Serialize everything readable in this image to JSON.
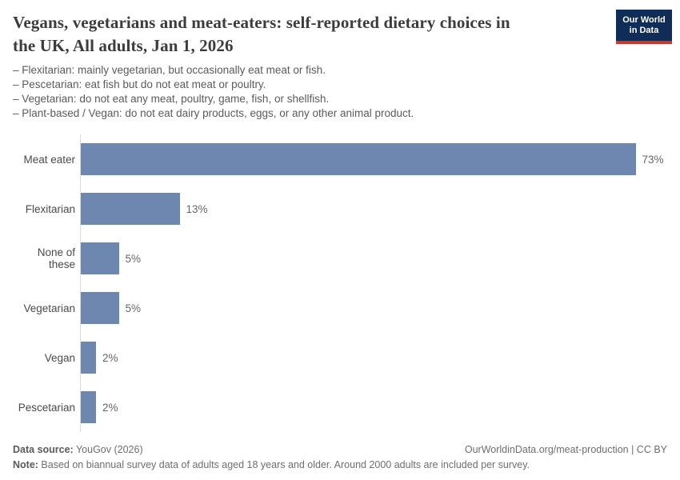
{
  "header": {
    "title": "Vegans, vegetarians and meat-eaters: self-reported dietary choices in the UK, All adults, Jan 1, 2026",
    "title_lines": [
      "Vegans, vegetarians and meat-eaters: self-reported dietary choices in",
      "the UK, All adults, Jan 1, 2026"
    ],
    "logo": {
      "line1": "Our World",
      "line2": "in Data"
    }
  },
  "subtitle_lines": [
    "– Flexitarian: mainly vegetarian, but occasionally eat meat or fish.",
    "– Pescetarian: eat fish but do not eat meat or poultry.",
    "– Vegetarian: do not eat any meat, poultry, game, fish, or shellfish.",
    "– Plant-based / Vegan: do not eat dairy products, eggs, or any other animal product."
  ],
  "chart_data": {
    "type": "bar",
    "orientation": "horizontal",
    "title": "Vegans, vegetarians and meat-eaters: self-reported dietary choices in the UK, All adults, Jan 1, 2026",
    "categories": [
      "Meat eater",
      "Flexitarian",
      "None of these",
      "Vegetarian",
      "Vegan",
      "Pescetarian"
    ],
    "values": [
      73,
      13,
      5,
      5,
      2,
      2
    ],
    "value_labels": [
      "73%",
      "13%",
      "5%",
      "5%",
      "2%",
      "2%"
    ],
    "unit": "%",
    "xlabel": "",
    "ylabel": "",
    "xlim": [
      0,
      77
    ],
    "grid": false,
    "legend": false,
    "bar_color": "#6e87b0",
    "axis_line_color": "#dcdcdc"
  },
  "footer": {
    "source_label": "Data source:",
    "source_value": " YouGov (2026)",
    "link": "OurWorldinData.org/meat-production | CC BY",
    "note_label": "Note:",
    "note_value": " Based on biannual survey data of adults aged 18 years and older. Around 2000 adults are included per survey."
  },
  "colors": {
    "bar": "#6e87b0",
    "logo_navy": "#0f2d56",
    "logo_red": "#d0352c",
    "title_text": "#3c3c3c",
    "subtitle_text": "#5b5b5b",
    "value_text": "#666666"
  }
}
